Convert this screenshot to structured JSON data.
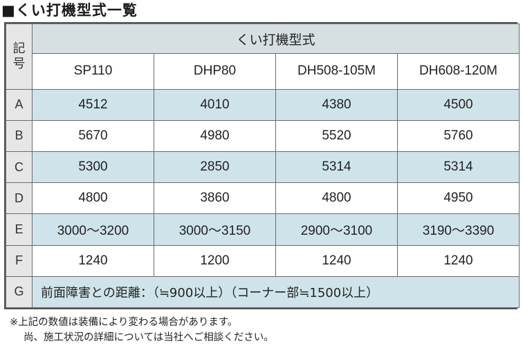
{
  "title": "■くい打機型式一覧",
  "table": {
    "key_header": [
      "記",
      "号"
    ],
    "group_header": "くい打機型式",
    "models": [
      "SP110",
      "DHP80",
      "DH508-105M",
      "DH608-120M"
    ],
    "rows": [
      {
        "key": "A",
        "values": [
          "4512",
          "4010",
          "4380",
          "4500"
        ]
      },
      {
        "key": "B",
        "values": [
          "5670",
          "4980",
          "5520",
          "5760"
        ]
      },
      {
        "key": "C",
        "values": [
          "5300",
          "2850",
          "5314",
          "5314"
        ]
      },
      {
        "key": "D",
        "values": [
          "4800",
          "3860",
          "4800",
          "4950"
        ]
      },
      {
        "key": "E",
        "values": [
          "3000～3200",
          "3000～3150",
          "2900～3100",
          "3190～3390"
        ]
      },
      {
        "key": "F",
        "values": [
          "1240",
          "1200",
          "1240",
          "1240"
        ]
      }
    ],
    "note_row": {
      "key": "G",
      "text": "前面障害との距離：（≒900以上）（コーナー部≒1500以上）"
    }
  },
  "footnotes": [
    "※上記の数値は装備により変わる場合があります。",
    "尚、施工状況の詳細については当社へご相談ください。"
  ],
  "colors": {
    "shaded_row": "#cfe4ea",
    "header": "#d6dfe1",
    "key_column": "#e6e6e6"
  }
}
